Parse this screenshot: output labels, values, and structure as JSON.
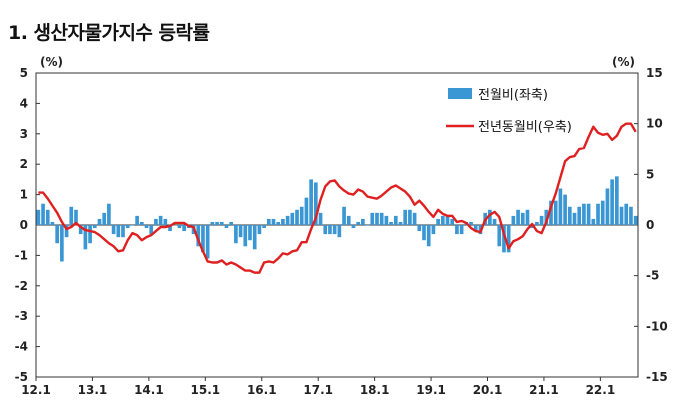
{
  "page_title": "1. 생산자물가지수 등락률",
  "colors": {
    "bar": "#3b97d3",
    "line": "#e02020",
    "axis": "#222222"
  },
  "chart_data": {
    "type": "bar+line",
    "title": "1. 생산자물가지수 등락률",
    "left_axis": {
      "unit_label": "(%)",
      "ylim": [
        -5,
        5
      ],
      "ticks": [
        5,
        4,
        3,
        2,
        1,
        0,
        -1,
        -2,
        -3,
        -4,
        -5
      ]
    },
    "right_axis": {
      "unit_label": "(%)",
      "ylim": [
        -15,
        15
      ],
      "ticks": [
        15,
        10,
        5,
        0,
        -5,
        -10,
        -15
      ]
    },
    "x_axis": {
      "start": "12.1",
      "end": "22.8",
      "tick_labels": [
        "12.1",
        "13.1",
        "14.1",
        "15.1",
        "16.1",
        "17.1",
        "18.1",
        "19.1",
        "20.1",
        "21.1",
        "22.1"
      ]
    },
    "legend": {
      "placement": "top-right"
    },
    "series": [
      {
        "name": "전월비(좌축)",
        "type": "bar",
        "axis": "left",
        "values": [
          0.5,
          0.7,
          0.5,
          0.1,
          -0.6,
          -1.2,
          -0.4,
          0.6,
          0.5,
          -0.3,
          -0.8,
          -0.6,
          -0.1,
          0.2,
          0.4,
          0.7,
          -0.3,
          -0.4,
          -0.4,
          -0.1,
          0.0,
          0.3,
          0.1,
          -0.1,
          -0.3,
          0.2,
          0.3,
          0.2,
          -0.2,
          0.0,
          -0.1,
          -0.2,
          -0.1,
          -0.3,
          -0.7,
          -0.9,
          -1.1,
          0.1,
          0.1,
          0.1,
          -0.1,
          0.1,
          -0.6,
          -0.4,
          -0.7,
          -0.5,
          -0.8,
          -0.3,
          -0.1,
          0.2,
          0.2,
          0.1,
          0.2,
          0.3,
          0.4,
          0.5,
          0.6,
          0.9,
          1.5,
          1.4,
          0.4,
          -0.3,
          -0.3,
          -0.3,
          -0.4,
          0.6,
          0.3,
          -0.1,
          0.1,
          0.2,
          0.0,
          0.4,
          0.4,
          0.4,
          0.3,
          0.1,
          0.3,
          0.1,
          0.5,
          0.5,
          0.4,
          -0.2,
          -0.5,
          -0.7,
          -0.3,
          0.2,
          0.3,
          0.3,
          0.2,
          -0.3,
          -0.3,
          0.1,
          0.1,
          -0.2,
          -0.3,
          0.4,
          0.5,
          0.2,
          -0.7,
          -0.9,
          -0.9,
          0.3,
          0.5,
          0.4,
          0.5,
          -0.1,
          0.1,
          0.3,
          0.5,
          0.8,
          0.8,
          1.2,
          1.0,
          0.6,
          0.4,
          0.6,
          0.7,
          0.7,
          0.2,
          0.7,
          0.8,
          1.2,
          1.5,
          1.6,
          0.6,
          0.7,
          0.6,
          0.3
        ]
      },
      {
        "name": "전년동월비(우축)",
        "type": "line",
        "axis": "right",
        "values": [
          3.2,
          3.2,
          2.6,
          1.9,
          1.2,
          0.3,
          -0.4,
          -0.2,
          0.2,
          -0.2,
          -0.5,
          -0.6,
          -0.7,
          -1.0,
          -1.4,
          -1.8,
          -2.1,
          -2.6,
          -2.5,
          -1.5,
          -0.8,
          -1.0,
          -1.5,
          -1.2,
          -1.0,
          -0.6,
          -0.2,
          -0.2,
          -0.1,
          0.2,
          0.2,
          0.2,
          -0.1,
          -0.2,
          -1.5,
          -2.6,
          -3.6,
          -3.7,
          -3.7,
          -3.5,
          -3.9,
          -3.7,
          -3.9,
          -4.2,
          -4.5,
          -4.5,
          -4.7,
          -4.7,
          -3.7,
          -3.6,
          -3.7,
          -3.3,
          -2.8,
          -2.9,
          -2.6,
          -2.5,
          -1.7,
          -1.7,
          -0.4,
          0.7,
          2.5,
          3.8,
          4.3,
          4.4,
          3.8,
          3.4,
          3.1,
          3.0,
          3.5,
          3.3,
          2.8,
          2.7,
          2.6,
          2.9,
          3.3,
          3.7,
          3.9,
          3.6,
          3.3,
          2.8,
          2.0,
          2.4,
          1.9,
          1.3,
          0.8,
          1.5,
          1.1,
          0.9,
          0.9,
          0.3,
          0.4,
          0.2,
          -0.3,
          -0.6,
          -0.7,
          0.5,
          1.0,
          1.3,
          0.8,
          -0.9,
          -2.3,
          -1.6,
          -1.4,
          -1.1,
          -0.4,
          0.1,
          -0.6,
          -0.8,
          0.3,
          1.8,
          3.1,
          4.7,
          6.3,
          6.7,
          6.8,
          7.5,
          7.6,
          8.7,
          9.7,
          9.1,
          8.9,
          9.0,
          8.4,
          8.8,
          9.7,
          10.0,
          10.0,
          9.2
        ]
      }
    ]
  }
}
